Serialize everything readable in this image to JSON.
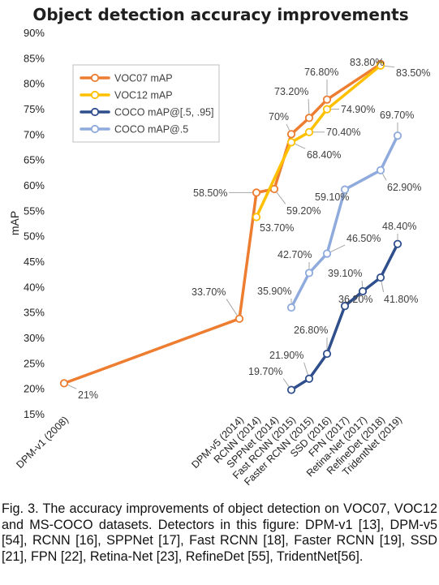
{
  "chart_data": {
    "type": "line",
    "title": "Object detection accuracy improvements",
    "ylabel": "mAP",
    "xlabel": "",
    "ylim": [
      15,
      90
    ],
    "yticks": [
      "15%",
      "20%",
      "25%",
      "30%",
      "35%",
      "40%",
      "45%",
      "50%",
      "55%",
      "60%",
      "65%",
      "70%",
      "75%",
      "80%",
      "85%",
      "90%"
    ],
    "categories": [
      "DPM-v1 (2008)",
      "DPM-v5 (2014)",
      "RCNN (2014)",
      "SPPNet (2014)",
      "Fast RCNN (2015)",
      "Faster RCNN (2015)",
      "SSD (2016)",
      "FPN (2017)",
      "Retina-Net (2017)",
      "RefineDet (2018)",
      "TridentNet (2019)"
    ],
    "grid": false,
    "legend_position": "top-left",
    "series": [
      {
        "name": "VOC07 mAP",
        "color": "#ed7d31",
        "values": [
          21,
          33.7,
          58.5,
          59.2,
          70,
          73.2,
          76.8,
          null,
          null,
          83.8,
          null
        ],
        "labels": [
          "21%",
          "33.70%",
          "58.50%",
          "59.20%",
          "70%",
          "73.20%",
          "76.80%",
          null,
          null,
          "83.80%",
          null
        ]
      },
      {
        "name": "VOC12 mAP",
        "color": "#ffc000",
        "values": [
          null,
          null,
          53.7,
          null,
          68.4,
          70.4,
          74.9,
          null,
          null,
          83.5,
          null
        ],
        "labels": [
          null,
          null,
          "53.70%",
          null,
          "68.40%",
          "70.40%",
          "74.90%",
          null,
          null,
          "83.50%",
          null
        ]
      },
      {
        "name": "COCO mAP@[.5, .95]",
        "color": "#2f4e8c",
        "values": [
          null,
          null,
          null,
          null,
          19.7,
          21.9,
          26.8,
          36.2,
          39.1,
          41.8,
          48.4
        ],
        "labels": [
          null,
          null,
          null,
          null,
          "19.70%",
          "21.90%",
          "26.80%",
          "36.20%",
          "39.10%",
          "41.80%",
          "48.40%"
        ]
      },
      {
        "name": "COCO mAP@.5",
        "color": "#8faadc",
        "values": [
          null,
          null,
          null,
          null,
          35.9,
          42.7,
          46.5,
          59.1,
          null,
          62.9,
          69.7
        ],
        "labels": [
          null,
          null,
          null,
          null,
          "35.90%",
          "42.70%",
          "46.50%",
          "59.10%",
          null,
          "62.90%",
          "69.70%"
        ]
      }
    ]
  },
  "caption": "Fig. 3. The accuracy improvements of object detection on VOC07, VOC12 and MS-COCO datasets. Detectors in this figure: DPM-v1 [13], DPM-v5 [54], RCNN [16], SPPNet [17], Fast RCNN [18], Faster RCNN [19], SSD [21], FPN [22], Retina-Net [23], RefineDet [55], TridentNet[56]."
}
